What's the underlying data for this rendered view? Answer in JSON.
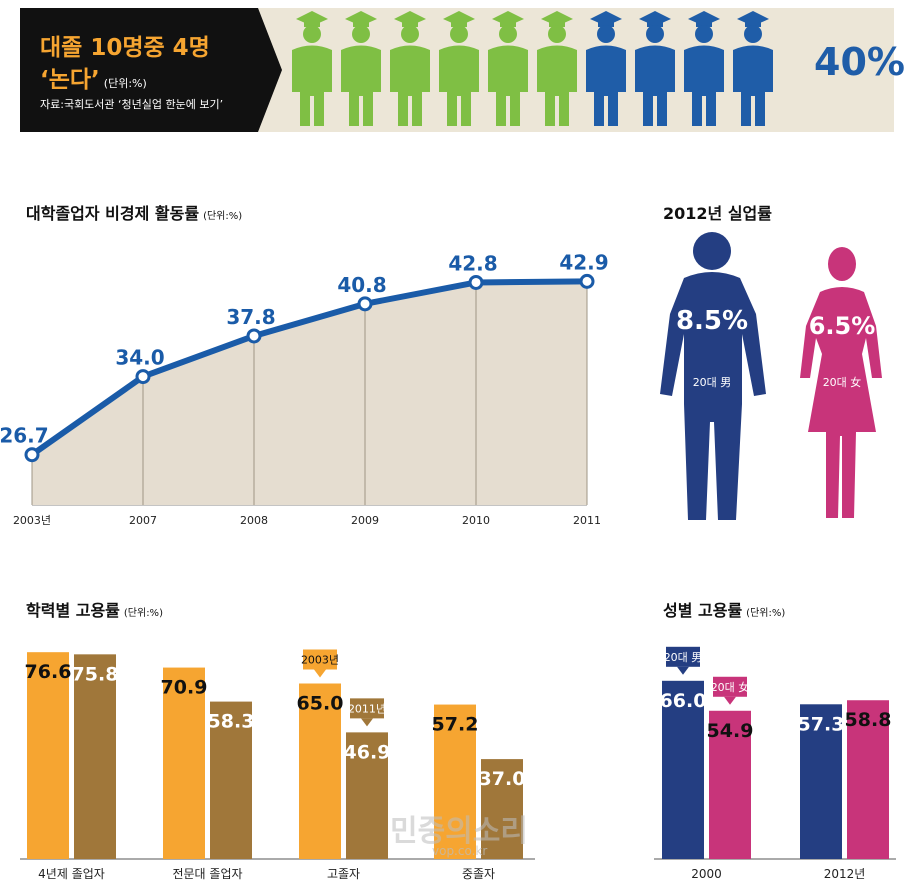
{
  "banner": {
    "title_line1": "대졸 10명중 4명",
    "title_line2": "‘논다’",
    "unit": "(단위:%)",
    "source": "자료:국회도서관 ‘청년실업 한눈에 보기’",
    "percent": "40%",
    "figures_total": 10,
    "figures_highlighted": 4,
    "colors": {
      "employed": "#7fbf44",
      "unemployed": "#1f5da8"
    }
  },
  "chart_data": [
    {
      "id": "activity-rate",
      "type": "area",
      "title": "대학졸업자 비경제 활동률",
      "unit": "(단위:%)",
      "x": [
        "2003년",
        "2007",
        "2008",
        "2009",
        "2010",
        "2011"
      ],
      "values": [
        26.7,
        34.0,
        37.8,
        40.8,
        42.8,
        42.9
      ],
      "labels": [
        "26.7",
        "34.0",
        "37.8",
        "40.8",
        "42.8",
        "42.9"
      ],
      "ylim": [
        22,
        46
      ],
      "colors": {
        "line": "#1a5ba8",
        "fill": "#e5ddd0"
      }
    },
    {
      "id": "unemployment-2012",
      "type": "table",
      "title": "2012년 실업률",
      "items": [
        {
          "label": "20대 男",
          "value": "8.5%",
          "color": "#243e82"
        },
        {
          "label": "20대 女",
          "value": "6.5%",
          "color": "#c8347a"
        }
      ]
    },
    {
      "id": "employment-by-education",
      "type": "bar",
      "title": "학력별 고용률",
      "unit": "(단위:%)",
      "categories": [
        "4년제 졸업자",
        "전문대 졸업자",
        "고졸자",
        "중졸자"
      ],
      "series": [
        {
          "name": "2003년",
          "values": [
            76.6,
            70.9,
            65.0,
            57.2
          ],
          "labels": [
            "76.6",
            "70.9",
            "65.0",
            "57.2"
          ],
          "color": "#f6a531"
        },
        {
          "name": "2011년",
          "values": [
            75.8,
            58.3,
            46.9,
            37.0
          ],
          "labels": [
            "75.8",
            "58.3",
            "46.9",
            "37.0"
          ],
          "color": "#a0773a"
        }
      ],
      "ylim": [
        0,
        92
      ]
    },
    {
      "id": "employment-by-gender",
      "type": "bar",
      "title": "성별 고용률",
      "unit": "(단위:%)",
      "categories": [
        "2000",
        "2012년"
      ],
      "series": [
        {
          "name": "20대 男",
          "values": [
            66.0,
            57.3
          ],
          "labels": [
            "66.0",
            "57.3"
          ],
          "color": "#243e82"
        },
        {
          "name": "20대 女",
          "values": [
            54.9,
            58.8
          ],
          "labels": [
            "54.9",
            "58.8"
          ],
          "color": "#c8347a"
        }
      ],
      "ylim": [
        0,
        92
      ]
    }
  ],
  "watermark": {
    "text": "민중의소리",
    "sub": "vop.co.kr"
  }
}
